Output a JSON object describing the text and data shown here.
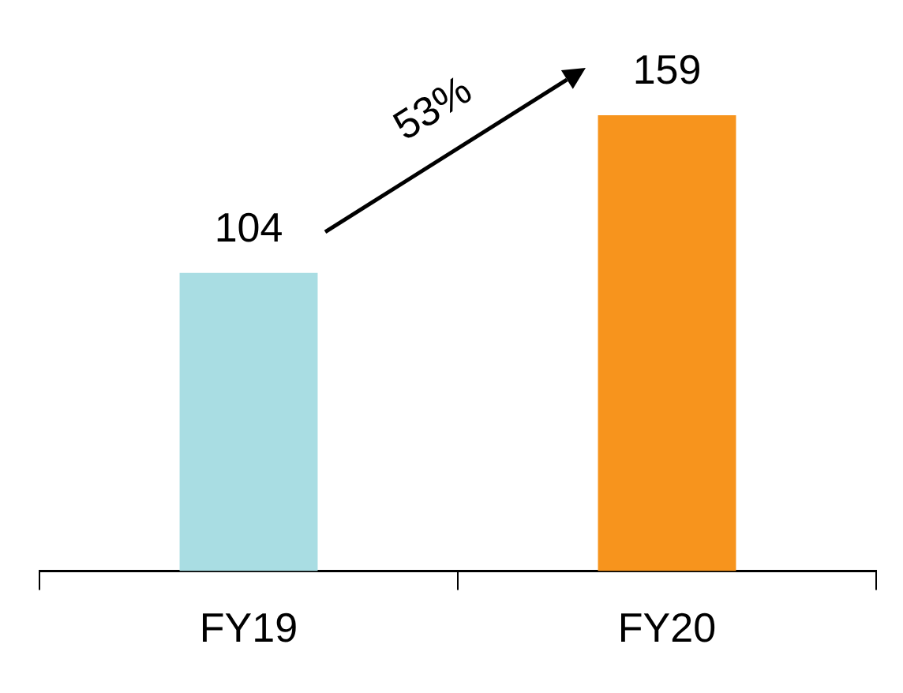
{
  "chart_data": {
    "type": "bar",
    "categories": [
      "FY19",
      "FY20"
    ],
    "colors": [
      "#a9dde3",
      "#f7941d"
    ],
    "values": [
      104,
      159
    ],
    "data_labels": true,
    "annotations": [
      "53%"
    ],
    "legend": false,
    "grid": false,
    "tick_labels": "x"
  }
}
